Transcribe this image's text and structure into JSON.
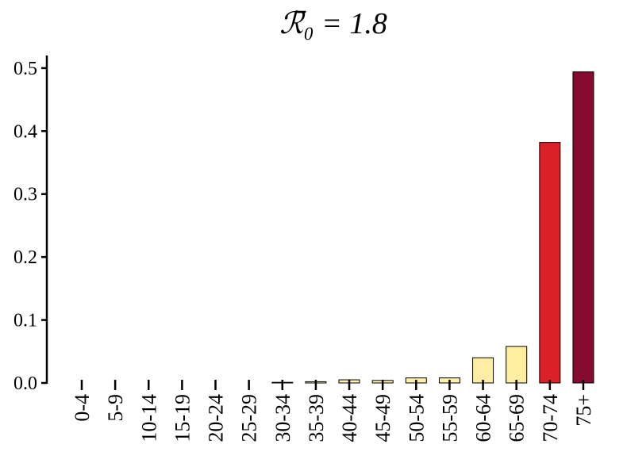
{
  "chart_data": {
    "type": "bar",
    "title": "ℛ̄₀ = 1.8",
    "categories": [
      "0-4",
      "5-9",
      "10-14",
      "15-19",
      "20-24",
      "25-29",
      "30-34",
      "35-39",
      "40-44",
      "45-49",
      "50-54",
      "55-59",
      "60-64",
      "65-69",
      "70-74",
      "75+"
    ],
    "values": [
      0,
      0,
      0,
      0,
      0,
      0,
      0.001,
      0.002,
      0.005,
      0.004,
      0.008,
      0.008,
      0.04,
      0.058,
      0.382,
      0.494
    ],
    "colors": [
      "#ffffcc",
      "#ffffcc",
      "#ffffcc",
      "#ffffcc",
      "#ffffcc",
      "#ffffcc",
      "#fffbc2",
      "#fff8b8",
      "#fff3ae",
      "#fff4b0",
      "#fff0a8",
      "#fff0a8",
      "#ffeda5",
      "#ffeda0",
      "#dc2027",
      "#850c30"
    ],
    "ylim": [
      0,
      0.52
    ],
    "yticks": [
      {
        "value": 0,
        "label": "0.0"
      },
      0.1,
      0.2,
      0.3,
      0.4,
      0.5
    ]
  }
}
